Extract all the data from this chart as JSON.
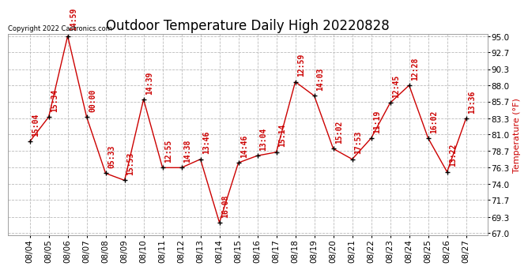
{
  "title": "Outdoor Temperature Daily High 20220828",
  "ylabel": "Temperature (°F)",
  "copyright": "Copyright 2022 Castronics.com",
  "dates": [
    "08/04",
    "08/05",
    "08/06",
    "08/07",
    "08/08",
    "08/09",
    "08/10",
    "08/11",
    "08/12",
    "08/13",
    "08/14",
    "08/15",
    "08/16",
    "08/17",
    "08/18",
    "08/19",
    "08/20",
    "08/21",
    "08/22",
    "08/23",
    "08/24",
    "08/25",
    "08/26",
    "08/27"
  ],
  "temps": [
    80.0,
    83.5,
    95.0,
    83.5,
    75.5,
    74.5,
    86.0,
    76.3,
    76.3,
    77.5,
    68.5,
    77.0,
    78.0,
    78.5,
    88.5,
    86.5,
    79.0,
    77.5,
    80.5,
    85.5,
    88.0,
    80.5,
    75.7,
    83.3
  ],
  "time_labels": [
    "15:04",
    "15:34",
    "14:59",
    "00:00",
    "05:33",
    "15:53",
    "14:39",
    "12:55",
    "14:38",
    "13:46",
    "16:08",
    "14:46",
    "13:04",
    "15:14",
    "12:59",
    "14:03",
    "15:02",
    "17:53",
    "11:19",
    "12:45",
    "12:28",
    "16:02",
    "13:22",
    "13:36"
  ],
  "line_color": "#cc0000",
  "marker_color": "#000000",
  "background_color": "#ffffff",
  "grid_color": "#bbbbbb",
  "text_color_red": "#cc0000",
  "text_color_black": "#000000",
  "ylim_min": 67.0,
  "ylim_max": 95.0,
  "yticks": [
    67.0,
    69.3,
    71.7,
    74.0,
    76.3,
    78.7,
    81.0,
    83.3,
    85.7,
    88.0,
    90.3,
    92.7,
    95.0
  ],
  "title_fontsize": 12,
  "label_fontsize": 8,
  "tick_fontsize": 7.5,
  "annotation_fontsize": 7,
  "copyright_fontsize": 6
}
